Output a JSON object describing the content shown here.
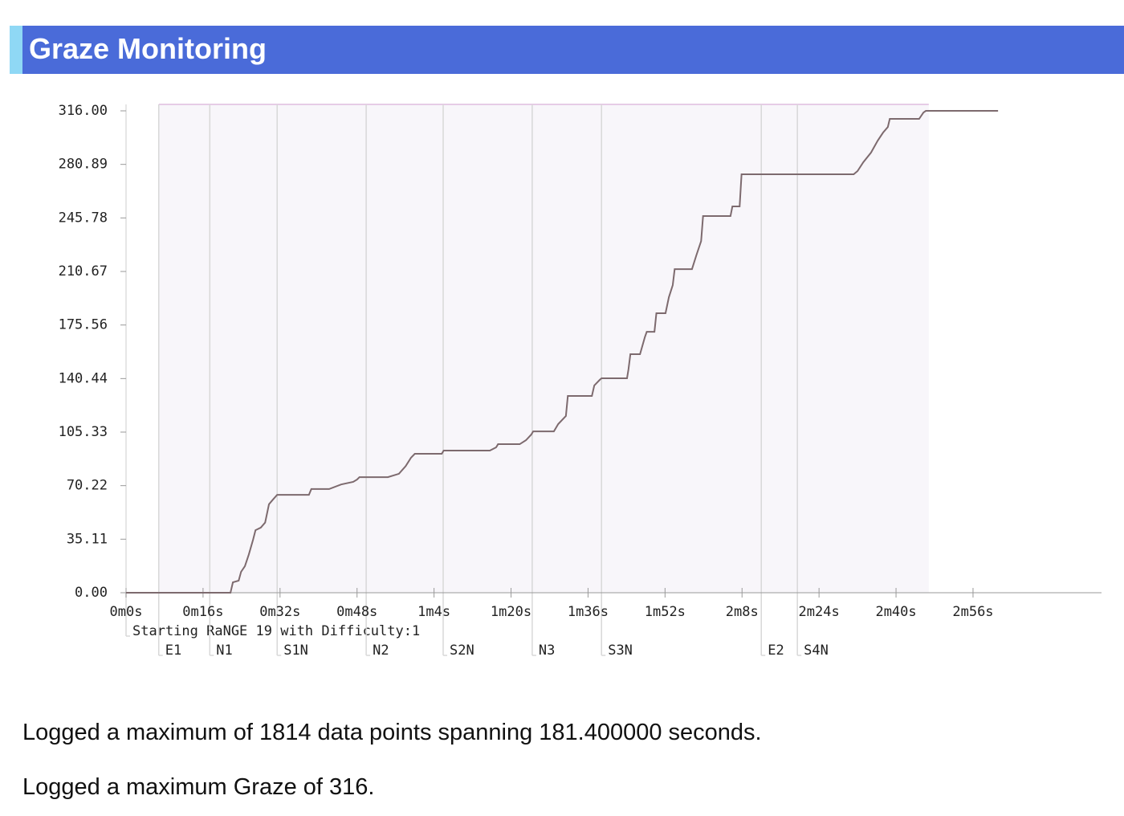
{
  "header": {
    "title": "Graze Monitoring"
  },
  "chart_data": {
    "type": "line",
    "x": [
      0,
      21.7,
      22.2,
      23.4,
      23.9,
      24.7,
      25.5,
      26.4,
      26.9,
      28.0,
      28.9,
      29.7,
      30.5,
      31.4,
      38.0,
      38.5,
      42.2,
      44.7,
      47.2,
      48.0,
      48.5,
      54.4,
      56.7,
      58.1,
      59.2,
      60,
      65.6,
      66,
      75.6,
      76.9,
      77.3,
      81.8,
      83.1,
      84.2,
      84.6,
      88.9,
      89.8,
      91.4,
      91.8,
      96.8,
      97.3,
      98.4,
      98.8,
      104.1,
      104.4,
      104.8,
      106.8,
      107.8,
      108.2,
      109.8,
      110.2,
      112.1,
      112.8,
      113.6,
      114.0,
      117.6,
      118.5,
      119.5,
      119.9,
      125.6,
      126.0,
      127.5,
      127.9,
      151.2,
      152.0,
      153.2,
      154.8,
      156.2,
      157.3,
      158.3,
      158.7,
      164.8,
      165.7,
      166.2,
      181.2
    ],
    "values": [
      0,
      0,
      6.8,
      7.9,
      13.7,
      17.4,
      25,
      34.8,
      41,
      42.7,
      46,
      58,
      61,
      64.2,
      64.2,
      68,
      68,
      71,
      72.7,
      74.2,
      75.8,
      75.8,
      78,
      83,
      88.5,
      91.1,
      91.1,
      93.2,
      93.2,
      95.3,
      97.4,
      97.4,
      100,
      103.7,
      105.8,
      105.8,
      110.6,
      115.9,
      129,
      129,
      135.9,
      139.5,
      140.6,
      140.6,
      146.4,
      156.4,
      156.4,
      167.5,
      171.1,
      171.1,
      183.3,
      183.3,
      193.8,
      201.7,
      212.2,
      212.2,
      221.2,
      230.6,
      247,
      247,
      253.3,
      253.3,
      274.4,
      274.4,
      276.5,
      282.3,
      288.6,
      296.5,
      301.7,
      305.4,
      310.7,
      310.7,
      314.9,
      316,
      316
    ],
    "color": "#7d6a6e",
    "xlim": [
      0,
      202.7
    ],
    "ylim": [
      0,
      316
    ],
    "xticks": [
      {
        "value": 0,
        "label": "0m0s"
      },
      {
        "value": 16,
        "label": "0m16s"
      },
      {
        "value": 32,
        "label": "0m32s"
      },
      {
        "value": 48,
        "label": "0m48s"
      },
      {
        "value": 64,
        "label": "1m4s"
      },
      {
        "value": 80,
        "label": "1m20s"
      },
      {
        "value": 96,
        "label": "1m36s"
      },
      {
        "value": 112,
        "label": "1m52s"
      },
      {
        "value": 128,
        "label": "2m8s"
      },
      {
        "value": 144,
        "label": "2m24s"
      },
      {
        "value": 160,
        "label": "2m40s"
      },
      {
        "value": 176,
        "label": "2m56s"
      }
    ],
    "yticks": [
      {
        "value": 0,
        "label": "0.00"
      },
      35.11,
      70.22,
      105.33,
      140.44,
      175.56,
      210.67,
      245.78,
      280.89,
      {
        "value": 316,
        "label": "316.00"
      }
    ],
    "shaded_range": [
      6.8,
      166.8
    ],
    "annotations": [
      {
        "x": 0,
        "label": "Starting RaNGE 19 with Difficulty:1"
      },
      {
        "x": 6.8,
        "label": "E1"
      },
      {
        "x": 17.4,
        "label": "N1"
      },
      {
        "x": 31.4,
        "label": "S1N"
      },
      {
        "x": 49.9,
        "label": "N2"
      },
      {
        "x": 65.9,
        "label": "S2N"
      },
      {
        "x": 84.4,
        "label": "N3"
      },
      {
        "x": 98.8,
        "label": "S3N"
      },
      {
        "x": 132.0,
        "label": "E2"
      },
      {
        "x": 139.5,
        "label": "S4N"
      }
    ]
  },
  "paragraphs": [
    "Logged a maximum of 1814 data points spanning 181.400000 seconds.",
    "Logged a maximum Graze of 316."
  ]
}
